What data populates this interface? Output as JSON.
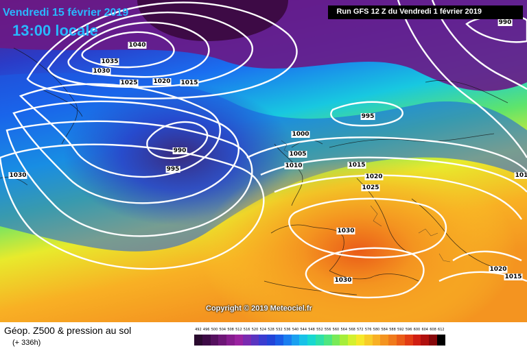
{
  "header": {
    "date": "Vendredi 15 février 2019",
    "local_time": "13:00 locale",
    "run_info": "Run GFS 12 Z du Vendredi 1 février 2019"
  },
  "footer": {
    "title": "Géop. Z500 & pression au sol",
    "lead_time": "(+ 336h)"
  },
  "copyright": "Copyright © 2019 Meteociel.fr",
  "legend": {
    "values": [
      "492",
      "496",
      "500",
      "504",
      "508",
      "512",
      "516",
      "520",
      "524",
      "528",
      "532",
      "536",
      "540",
      "544",
      "548",
      "552",
      "556",
      "560",
      "564",
      "568",
      "572",
      "576",
      "580",
      "584",
      "588",
      "592",
      "596",
      "600",
      "604",
      "608",
      "612"
    ],
    "colors": [
      "#2a0a2e",
      "#3d0a45",
      "#55105e",
      "#6d1676",
      "#861c8e",
      "#9a22a0",
      "#7a2ab0",
      "#5a34c0",
      "#3a3cd0",
      "#2244d8",
      "#1a5ce6",
      "#1a7ef0",
      "#1aa0f0",
      "#18c2e8",
      "#18d8d0",
      "#2ee0a8",
      "#4ee680",
      "#78ea58",
      "#a6ee3a",
      "#d4f02e",
      "#f6e82a",
      "#f8cc28",
      "#f8b024",
      "#f49420",
      "#f07a1c",
      "#ea5c18",
      "#e23c14",
      "#d01e12",
      "#b0100e",
      "#86080a",
      "#000000"
    ]
  },
  "isobars": [
    {
      "text": "1040"
    },
    {
      "text": "1035"
    },
    {
      "text": "1030"
    },
    {
      "text": "1025"
    },
    {
      "text": "1020"
    },
    {
      "text": "1015"
    },
    {
      "text": "990"
    },
    {
      "text": "995"
    },
    {
      "text": "1030"
    },
    {
      "text": "995"
    },
    {
      "text": "1000"
    },
    {
      "text": "1005"
    },
    {
      "text": "1010"
    },
    {
      "text": "1015"
    },
    {
      "text": "1020"
    },
    {
      "text": "1025"
    },
    {
      "text": "1030"
    },
    {
      "text": "1030"
    },
    {
      "text": "990"
    },
    {
      "text": "1020"
    },
    {
      "text": "1015"
    },
    {
      "text": "101"
    }
  ]
}
